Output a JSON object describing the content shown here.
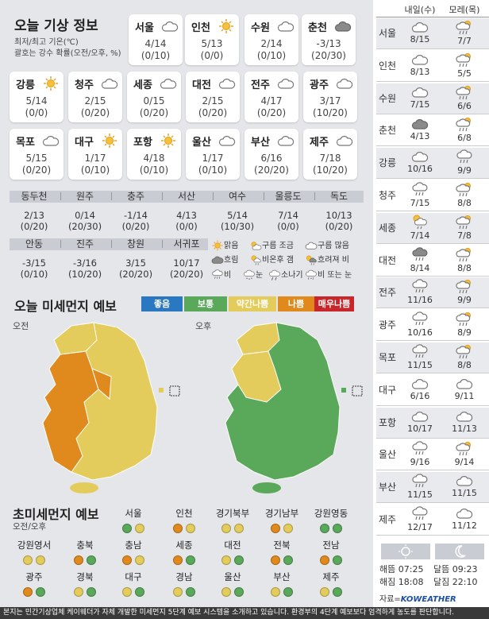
{
  "title": "오늘 기상 정보",
  "subtitle_line1": "최저/최고 기온(℃)",
  "subtitle_line2": "괄호는 강수 확률(오전/오후, %)",
  "major_cities": [
    {
      "name": "서울",
      "icon": "cloudy-icon",
      "temp": "4/14",
      "precip": "(0/10)"
    },
    {
      "name": "인천",
      "icon": "sunny-icon",
      "temp": "5/13",
      "precip": "(0/0)"
    },
    {
      "name": "수원",
      "icon": "cloudy-icon",
      "temp": "2/14",
      "precip": "(0/10)"
    },
    {
      "name": "춘천",
      "icon": "overcast-icon",
      "temp": "-3/13",
      "precip": "(20/30)"
    },
    {
      "name": "강릉",
      "icon": "sunny-icon",
      "temp": "5/14",
      "precip": "(0/0)"
    },
    {
      "name": "청주",
      "icon": "cloudy-icon",
      "temp": "2/15",
      "precip": "(0/20)"
    },
    {
      "name": "세종",
      "icon": "cloudy-icon",
      "temp": "0/15",
      "precip": "(0/20)"
    },
    {
      "name": "대전",
      "icon": "cloudy-icon",
      "temp": "2/15",
      "precip": "(0/20)"
    },
    {
      "name": "전주",
      "icon": "cloudy-icon",
      "temp": "4/17",
      "precip": "(0/20)"
    },
    {
      "name": "광주",
      "icon": "cloudy-icon",
      "temp": "3/17",
      "precip": "(10/20)"
    },
    {
      "name": "목포",
      "icon": "cloudy-icon",
      "temp": "5/15",
      "precip": "(0/20)"
    },
    {
      "name": "대구",
      "icon": "sunny-icon",
      "temp": "1/17",
      "precip": "(0/10)"
    },
    {
      "name": "포항",
      "icon": "sunny-icon",
      "temp": "4/18",
      "precip": "(0/10)"
    },
    {
      "name": "울산",
      "icon": "cloudy-icon",
      "temp": "1/17",
      "precip": "(0/10)"
    },
    {
      "name": "부산",
      "icon": "cloudy-icon",
      "temp": "6/16",
      "precip": "(20/20)"
    },
    {
      "name": "제주",
      "icon": "cloudy-icon",
      "temp": "7/18",
      "precip": "(10/20)"
    }
  ],
  "other_cities_row1": [
    {
      "name": "동두천",
      "temp": "2/13",
      "precip": "(0/20)"
    },
    {
      "name": "원주",
      "temp": "0/14",
      "precip": "(20/30)"
    },
    {
      "name": "충주",
      "temp": "-1/14",
      "precip": "(0/20)"
    },
    {
      "name": "서산",
      "temp": "4/13",
      "precip": "(0/0)"
    },
    {
      "name": "여수",
      "temp": "5/14",
      "precip": "(10/30)"
    },
    {
      "name": "울릉도",
      "temp": "7/14",
      "precip": "(0/0)"
    },
    {
      "name": "독도",
      "temp": "10/13",
      "precip": "(0/20)"
    }
  ],
  "other_cities_row2": [
    {
      "name": "안동",
      "temp": "-3/15",
      "precip": "(0/10)"
    },
    {
      "name": "진주",
      "temp": "-3/16",
      "precip": "(10/20)"
    },
    {
      "name": "창원",
      "temp": "3/15",
      "precip": "(20/20)"
    },
    {
      "name": "서귀포",
      "temp": "10/17",
      "precip": "(20/20)"
    }
  ],
  "weather_legend": [
    {
      "label": "맑음",
      "icon": "sunny-icon"
    },
    {
      "label": "구름 조금",
      "icon": "partly-cloudy-icon"
    },
    {
      "label": "구름 많음",
      "icon": "cloudy-icon"
    },
    {
      "label": "흐림",
      "icon": "overcast-icon"
    },
    {
      "label": "비온후 갬",
      "icon": "rain-then-clear-icon"
    },
    {
      "label": "흐려져 비",
      "icon": "cloudy-then-rain-icon"
    },
    {
      "label": "비",
      "icon": "rain-icon"
    },
    {
      "label": "눈",
      "icon": "snow-icon"
    },
    {
      "label": "소나기",
      "icon": "shower-icon"
    },
    {
      "label": "비 또는 눈",
      "icon": "sleet-icon"
    }
  ],
  "dust_title": "오늘 미세먼지 예보",
  "dust_levels": [
    {
      "label": "좋음",
      "color": "#2a78c2"
    },
    {
      "label": "보통",
      "color": "#5aa85a"
    },
    {
      "label": "약간나쁨",
      "color": "#e3cc5c"
    },
    {
      "label": "나쁨",
      "color": "#e08a1e"
    },
    {
      "label": "매우나쁨",
      "color": "#c8262a"
    }
  ],
  "map_am_label": "오전",
  "map_pm_label": "오후",
  "ultrafine_title": "초미세먼지 예보",
  "ultrafine_subtitle": "오전/오후",
  "ultrafine": [
    {
      "name": "서울",
      "am": "보통",
      "pm": "약간나쁨"
    },
    {
      "name": "인천",
      "am": "나쁨",
      "pm": "약간나쁨"
    },
    {
      "name": "경기북부",
      "am": "약간나쁨",
      "pm": "약간나쁨"
    },
    {
      "name": "경기남부",
      "am": "나쁨",
      "pm": "약간나쁨"
    },
    {
      "name": "강원영동",
      "am": "보통",
      "pm": "보통"
    },
    {
      "name": "강원영서",
      "am": "약간나쁨",
      "pm": "약간나쁨"
    },
    {
      "name": "충북",
      "am": "나쁨",
      "pm": "보통"
    },
    {
      "name": "충남",
      "am": "나쁨",
      "pm": "약간나쁨"
    },
    {
      "name": "세종",
      "am": "나쁨",
      "pm": "보통"
    },
    {
      "name": "대전",
      "am": "약간나쁨",
      "pm": "보통"
    },
    {
      "name": "전북",
      "am": "나쁨",
      "pm": "보통"
    },
    {
      "name": "전남",
      "am": "나쁨",
      "pm": "보통"
    },
    {
      "name": "광주",
      "am": "나쁨",
      "pm": "보통"
    },
    {
      "name": "경북",
      "am": "약간나쁨",
      "pm": "보통"
    },
    {
      "name": "대구",
      "am": "약간나쁨",
      "pm": "보통"
    },
    {
      "name": "경남",
      "am": "약간나쁨",
      "pm": "보통"
    },
    {
      "name": "울산",
      "am": "약간나쁨",
      "pm": "보통"
    },
    {
      "name": "부산",
      "am": "약간나쁨",
      "pm": "보통"
    },
    {
      "name": "제주",
      "am": "약간나쁨",
      "pm": "보통"
    }
  ],
  "forecast_header": {
    "day1": "내일(수)",
    "day2": "모레(목)"
  },
  "forecast": [
    {
      "city": "서울",
      "d1_icon": "cloudy-icon",
      "d1": "8/15",
      "d2_icon": "partly-cloudy-rain-icon",
      "d2": "7/7"
    },
    {
      "city": "인천",
      "d1_icon": "cloudy-icon",
      "d1": "8/13",
      "d2_icon": "partly-cloudy-rain-icon",
      "d2": "5/5"
    },
    {
      "city": "수원",
      "d1_icon": "cloudy-icon",
      "d1": "7/15",
      "d2_icon": "partly-cloudy-rain-icon",
      "d2": "6/6"
    },
    {
      "city": "춘천",
      "d1_icon": "overcast-icon",
      "d1": "4/13",
      "d2_icon": "partly-cloudy-rain-icon",
      "d2": "6/8"
    },
    {
      "city": "강릉",
      "d1_icon": "cloudy-icon",
      "d1": "10/16",
      "d2_icon": "rain-icon",
      "d2": "9/9"
    },
    {
      "city": "청주",
      "d1_icon": "rain-icon",
      "d1": "7/15",
      "d2_icon": "partly-cloudy-rain-icon",
      "d2": "8/8"
    },
    {
      "city": "세종",
      "d1_icon": "sun-cloud-rain-icon",
      "d1": "7/14",
      "d2_icon": "partly-cloudy-rain-icon",
      "d2": "7/8"
    },
    {
      "city": "대전",
      "d1_icon": "cloudy-rain-icon",
      "d1": "8/14",
      "d2_icon": "partly-cloudy-rain-icon",
      "d2": "8/8"
    },
    {
      "city": "전주",
      "d1_icon": "rain-icon",
      "d1": "11/16",
      "d2_icon": "partly-cloudy-rain-icon",
      "d2": "9/9"
    },
    {
      "city": "광주",
      "d1_icon": "rain-icon",
      "d1": "10/16",
      "d2_icon": "partly-cloudy-rain-icon",
      "d2": "8/9"
    },
    {
      "city": "목포",
      "d1_icon": "rain-icon",
      "d1": "11/15",
      "d2_icon": "partly-cloudy-rain-icon",
      "d2": "8/8"
    },
    {
      "city": "대구",
      "d1_icon": "cloudy-icon",
      "d1": "6/16",
      "d2_icon": "cloudy-icon",
      "d2": "9/11"
    },
    {
      "city": "포항",
      "d1_icon": "cloudy-icon",
      "d1": "10/17",
      "d2_icon": "cloudy-icon",
      "d2": "11/13"
    },
    {
      "city": "울산",
      "d1_icon": "rain-icon",
      "d1": "9/16",
      "d2_icon": "partly-cloudy-rain-icon",
      "d2": "9/14"
    },
    {
      "city": "부산",
      "d1_icon": "rain-icon",
      "d1": "11/15",
      "d2_icon": "cloudy-icon",
      "d2": "11/15"
    },
    {
      "city": "제주",
      "d1_icon": "rain-icon",
      "d1": "12/17",
      "d2_icon": "cloudy-icon",
      "d2": "11/12"
    }
  ],
  "sun": {
    "rise_label": "해뜸",
    "rise": "07:25",
    "set_label": "해짐",
    "set": "18:08"
  },
  "moon": {
    "rise_label": "달뜸",
    "rise": "09:23",
    "set_label": "달짐",
    "set": "22:10"
  },
  "source": "자료=",
  "brand": "KOWEATHER",
  "footer": "본지는 민간기상업체 케이웨더가 자체 개발한 미세먼지 5단계 예보 시스템을 소개하고 있습니다. 환경부의 4단계 예보보다 엄격하게 농도를 판단합니다."
}
